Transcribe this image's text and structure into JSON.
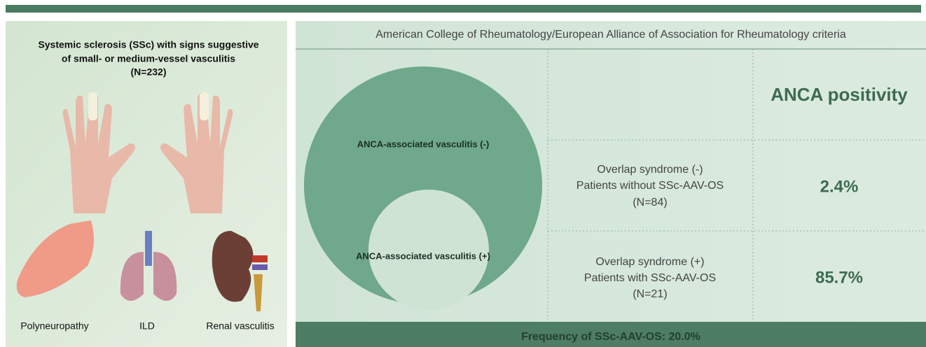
{
  "left_panel": {
    "title_lines": [
      "Systemic sclerosis (SSc) with signs suggestive",
      "of small- or medium-vessel vasculitis",
      "(N=232)"
    ],
    "icons": [
      "Polyneuropathy",
      "ILD",
      "Renal vasculitis"
    ]
  },
  "header": {
    "title": "American College of Rheumatology/European Alliance of Association for Rheumatology criteria"
  },
  "venn": {
    "outer": "ANCA-associated vasculitis (-)",
    "inner": "ANCA-associated vasculitis (+)"
  },
  "table": {
    "column_header": "ANCA positivity",
    "rows": [
      {
        "lines": [
          "Overlap syndrome (-)",
          "Patients without SSc-AAV-OS",
          "(N=84)"
        ],
        "value": "2.4%"
      },
      {
        "lines": [
          "Overlap syndrome (+)",
          "Patients with SSc-AAV-OS",
          "(N=21)"
        ],
        "value": "85.7%"
      }
    ]
  },
  "footer": {
    "text": "Frequency of SSc-AAV-OS: 20.0%"
  }
}
